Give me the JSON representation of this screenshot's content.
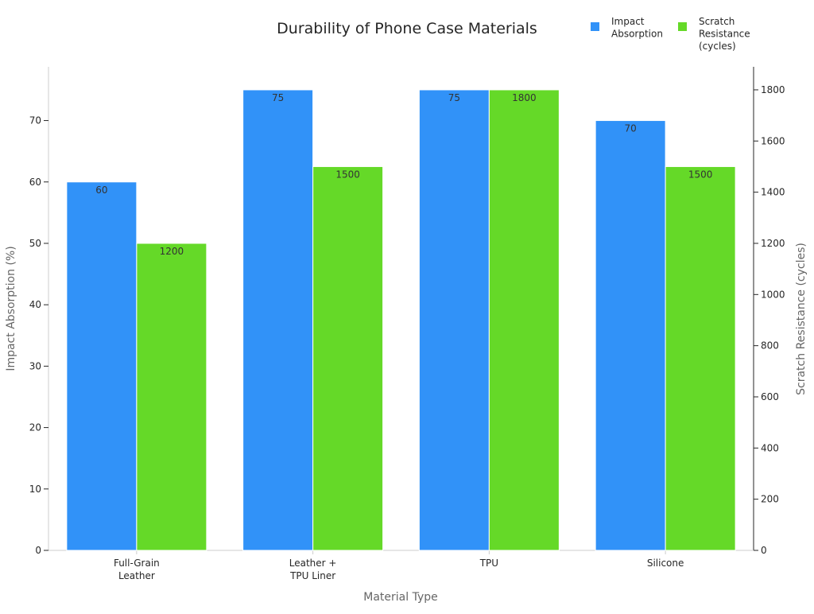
{
  "chart_data": {
    "type": "bar",
    "title": "Durability of Phone Case Materials",
    "xlabel": "Material Type",
    "ylabel": "Impact Absorption (%)",
    "y2label": "Scratch Resistance (cycles)",
    "categories": [
      [
        "Full-Grain",
        "Leather"
      ],
      [
        "Leather +",
        "TPU Liner"
      ],
      [
        "TPU"
      ],
      [
        "Silicone"
      ]
    ],
    "series": [
      {
        "name": [
          "Impact",
          "Absorption"
        ],
        "axis": "left",
        "color": "#3192f8",
        "values": [
          60,
          75,
          75,
          70
        ]
      },
      {
        "name": [
          "Scratch",
          "Resistance",
          "(cycles)"
        ],
        "axis": "right",
        "color": "#65d928",
        "values": [
          1200,
          1500,
          1800,
          1500
        ]
      }
    ],
    "ylim": [
      0,
      78.75
    ],
    "yticks": [
      0,
      10,
      20,
      30,
      40,
      50,
      60,
      70
    ],
    "y2lim": [
      0,
      1890
    ],
    "y2ticks": [
      0,
      200,
      400,
      600,
      800,
      1000,
      1200,
      1400,
      1600,
      1800
    ],
    "legend_position": "top-right",
    "grid": false
  }
}
